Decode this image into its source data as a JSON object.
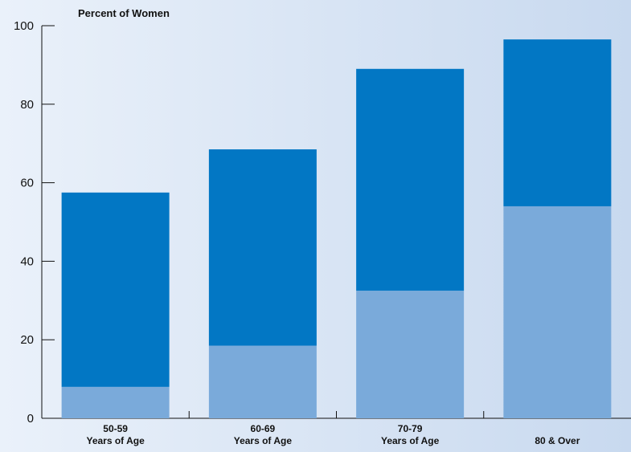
{
  "chart_data": {
    "type": "bar",
    "stacked": true,
    "ylabel": "Percent of Women",
    "ylim": [
      0,
      100
    ],
    "yticks": [
      0,
      20,
      40,
      60,
      80,
      100
    ],
    "categories": [
      [
        "50-59",
        "Years of Age"
      ],
      [
        "60-69",
        "Years of Age"
      ],
      [
        "70-79",
        "Years of Age"
      ],
      [
        "80 & Over"
      ]
    ],
    "series": [
      {
        "values": [
          8,
          18.5,
          32.5,
          54
        ],
        "color": "#7aaada"
      },
      {
        "values": [
          49.5,
          50,
          56.5,
          42.5
        ],
        "color": "#0277c4"
      }
    ],
    "totals": [
      57.5,
      68.5,
      89,
      96.5
    ],
    "grid": false,
    "legend": "none"
  }
}
